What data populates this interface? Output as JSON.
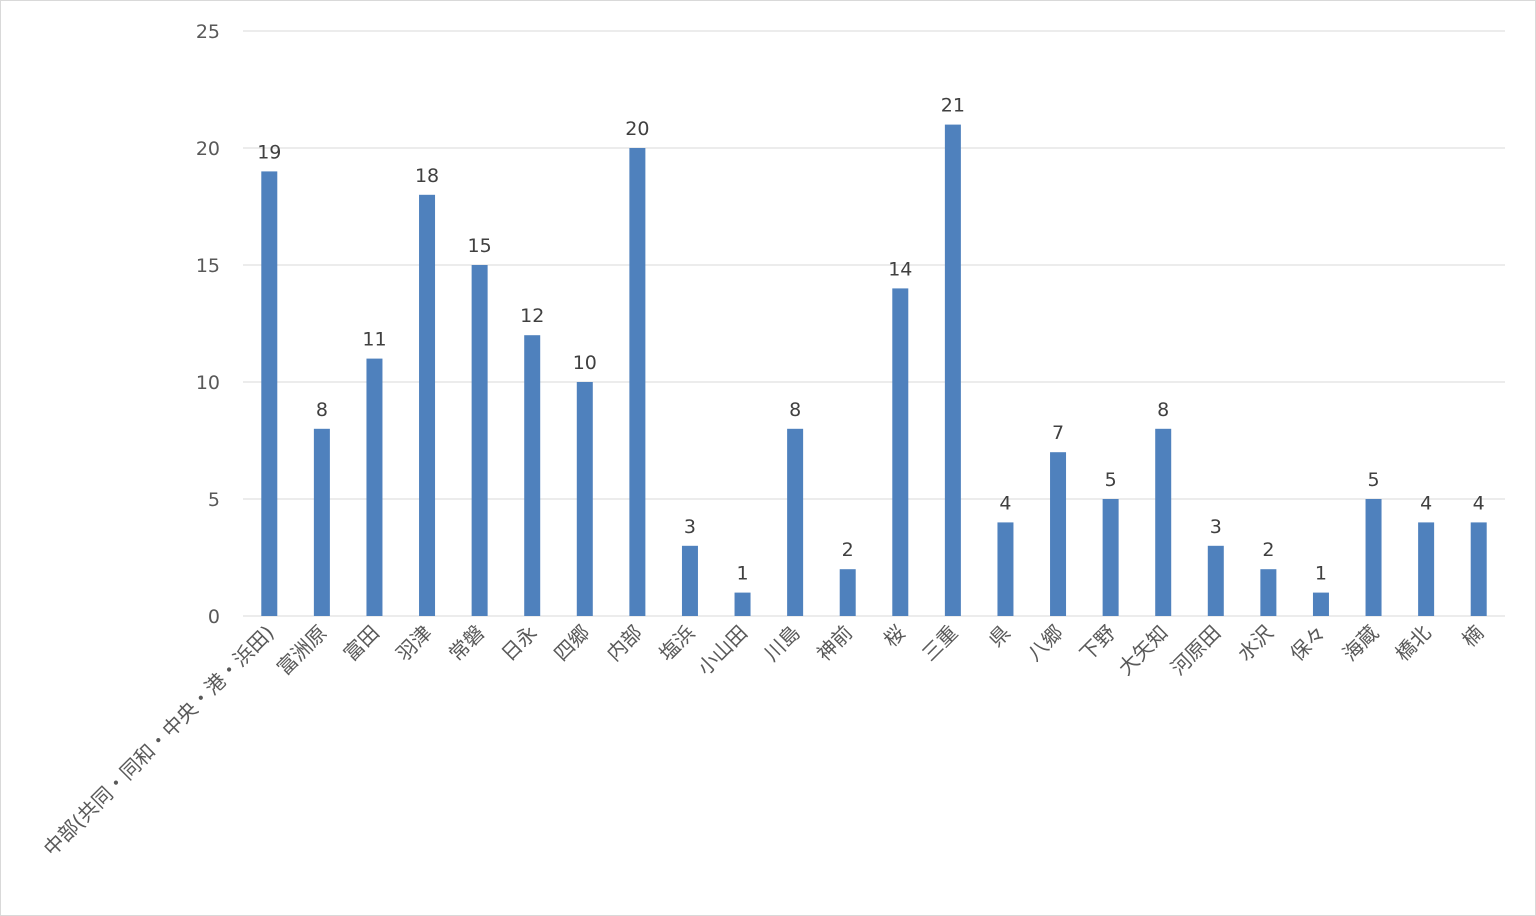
{
  "chart_data": {
    "type": "bar",
    "title": "",
    "xlabel": "",
    "ylabel": "",
    "ylim": [
      0,
      25
    ],
    "yticks": [
      0,
      5,
      10,
      15,
      20,
      25
    ],
    "grid": true,
    "legend": "none",
    "bar_color": "#4f81bd",
    "data_labels": true,
    "categories": [
      "中部(共同・同和・中央・港・浜田)",
      "富洲原",
      "富田",
      "羽津",
      "常磐",
      "日永",
      "四郷",
      "内部",
      "塩浜",
      "小山田",
      "川島",
      "神前",
      "桜",
      "三重",
      "県",
      "八郷",
      "下野",
      "大矢知",
      "河原田",
      "水沢",
      "保々",
      "海蔵",
      "橋北",
      "楠"
    ],
    "values": [
      19,
      8,
      11,
      18,
      15,
      12,
      10,
      20,
      3,
      1,
      8,
      2,
      14,
      21,
      4,
      7,
      5,
      8,
      3,
      2,
      1,
      5,
      4,
      4
    ]
  }
}
